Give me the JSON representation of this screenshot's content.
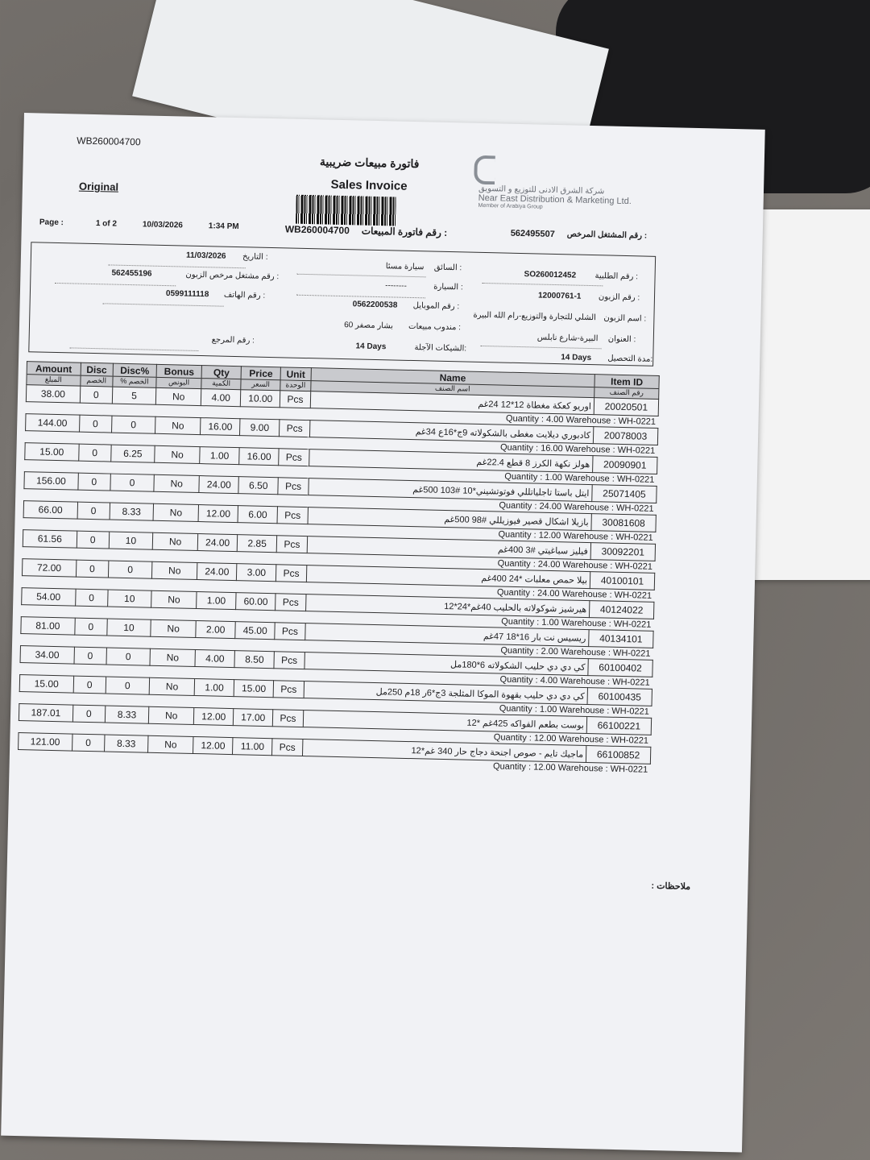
{
  "header": {
    "doc_number": "WB260004700",
    "copy_label": "Original",
    "title_ar": "فاتورة مبيعات ضريبية",
    "title_en": "Sales Invoice",
    "company_ar": "شركة الشرق الادنى للتوزيع و التسويق",
    "company_en": "Near East Distribution & Marketing Ltd.",
    "company_sub": "Member of Arabiya Group",
    "page_label": "Page :",
    "page_value": "1 of 2",
    "print_date": "10/03/2026",
    "print_time": "1:34 PM",
    "invoice_no": "WB260004700",
    "invoice_no_label": "رقم فاتورة المبيعات :",
    "licensed_no_label": "رقم المشتغل المرخص :",
    "licensed_no": "562495507"
  },
  "info": {
    "order_no_label": "رقم الطلبية :",
    "order_no": "SO260012452",
    "customer_no_label": "رقم الزبون :",
    "customer_no": "12000761-1",
    "customer_name_label": "اسم الزبون :",
    "customer_name": "الشلي للتجارة والتوزيع-رام الله البيرة",
    "address_label": "العنوان :",
    "address": "البيرة-شارع نابلس",
    "collection_label": "مدة التحصيل:",
    "collection": "14 Days",
    "driver_label": "السائق :",
    "driver": "سيارة مسئا",
    "car_label": "السيارة :",
    "car": "--------",
    "mobile_label": "رقم الموبايل :",
    "mobile": "0562200538",
    "rep_label": "مندوب مبيعات :",
    "rep": "بشار مصفر 60",
    "cheques_label": "الشيكات الآجلة:",
    "cheques": "14 Days",
    "date_label": "التاريخ :",
    "date": "11/03/2026",
    "cust_license_label": "رقم مشتغل مرخص الزبون :",
    "cust_license": "562455196",
    "phone_label": "رقم الهاتف :",
    "phone": "0599111118",
    "reference_label": "رقم المرجع :"
  },
  "table": {
    "columns": [
      {
        "en": "Amount",
        "ar": "المبلغ"
      },
      {
        "en": "Disc",
        "ar": "الخصم"
      },
      {
        "en": "Disc%",
        "ar": "% الخصم"
      },
      {
        "en": "Bonus",
        "ar": "البونص"
      },
      {
        "en": "Qty",
        "ar": "الكمية"
      },
      {
        "en": "Price",
        "ar": "السعر"
      },
      {
        "en": "Unit",
        "ar": "الوحدة"
      },
      {
        "en": "Name",
        "ar": "اسم الصنف"
      },
      {
        "en": "Item ID",
        "ar": "رقم الصنف"
      }
    ],
    "rows": [
      {
        "amount": "38.00",
        "disc": "0",
        "disc_pct": "5",
        "bonus": "No",
        "qty": "4.00",
        "price": "10.00",
        "unit": "Pcs",
        "name": "اوريو كعكة مغطاة 12*12 24غم",
        "item_id": "20020501",
        "sub": "Quantity : 4.00  Warehouse : WH-0221"
      },
      {
        "amount": "144.00",
        "disc": "0",
        "disc_pct": "0",
        "bonus": "No",
        "qty": "16.00",
        "price": "9.00",
        "unit": "Pcs",
        "name": "كادبوري ديلايت مغطى بالشكولاته 9ج*16ع 34غم",
        "item_id": "20078003",
        "sub": "Quantity : 16.00  Warehouse : WH-0221"
      },
      {
        "amount": "15.00",
        "disc": "0",
        "disc_pct": "6.25",
        "bonus": "No",
        "qty": "1.00",
        "price": "16.00",
        "unit": "Pcs",
        "name": "هولز نكهة الكرز 8 قطع 22.4غم",
        "item_id": "20090901",
        "sub": "Quantity : 1.00  Warehouse : WH-0221"
      },
      {
        "amount": "156.00",
        "disc": "0",
        "disc_pct": "0",
        "bonus": "No",
        "qty": "24.00",
        "price": "6.50",
        "unit": "Pcs",
        "name": "ايتل باستا تاجلياتللي فوتوتشيني*10 #103 500غم",
        "item_id": "25071405",
        "sub": "Quantity : 24.00  Warehouse : WH-0221"
      },
      {
        "amount": "66.00",
        "disc": "0",
        "disc_pct": "8.33",
        "bonus": "No",
        "qty": "12.00",
        "price": "6.00",
        "unit": "Pcs",
        "name": "بازيلا اشكال قصير فيوزيللي #98 500غم",
        "item_id": "30081608",
        "sub": "Quantity : 12.00  Warehouse : WH-0221"
      },
      {
        "amount": "61.56",
        "disc": "0",
        "disc_pct": "10",
        "bonus": "No",
        "qty": "24.00",
        "price": "2.85",
        "unit": "Pcs",
        "name": "فيليز سباغيتي #3 400غم",
        "item_id": "30092201",
        "sub": "Quantity : 24.00  Warehouse : WH-0221"
      },
      {
        "amount": "72.00",
        "disc": "0",
        "disc_pct": "0",
        "bonus": "No",
        "qty": "24.00",
        "price": "3.00",
        "unit": "Pcs",
        "name": "بيلا حمص معلبات *24 400غم",
        "item_id": "40100101",
        "sub": "Quantity : 24.00  Warehouse : WH-0221"
      },
      {
        "amount": "54.00",
        "disc": "0",
        "disc_pct": "10",
        "bonus": "No",
        "qty": "1.00",
        "price": "60.00",
        "unit": "Pcs",
        "name": "هيرشيز شوكولاته بالحليب 40غم*24*12",
        "item_id": "40124022",
        "sub": "Quantity : 1.00  Warehouse : WH-0221"
      },
      {
        "amount": "81.00",
        "disc": "0",
        "disc_pct": "10",
        "bonus": "No",
        "qty": "2.00",
        "price": "45.00",
        "unit": "Pcs",
        "name": "ريسيس نت بار 16*18 47غم",
        "item_id": "40134101",
        "sub": "Quantity : 2.00  Warehouse : WH-0221"
      },
      {
        "amount": "34.00",
        "disc": "0",
        "disc_pct": "0",
        "bonus": "No",
        "qty": "4.00",
        "price": "8.50",
        "unit": "Pcs",
        "name": "كي دي دي حليب الشكولاته 6*180مل",
        "item_id": "60100402",
        "sub": "Quantity : 4.00  Warehouse : WH-0221"
      },
      {
        "amount": "15.00",
        "disc": "0",
        "disc_pct": "0",
        "bonus": "No",
        "qty": "1.00",
        "price": "15.00",
        "unit": "Pcs",
        "name": "كي دي دي حليب بقهوة الموكا المثلجة 3ج*6ر 18م 250مل",
        "item_id": "60100435",
        "sub": "Quantity : 1.00  Warehouse : WH-0221"
      },
      {
        "amount": "187.01",
        "disc": "0",
        "disc_pct": "8.33",
        "bonus": "No",
        "qty": "12.00",
        "price": "17.00",
        "unit": "Pcs",
        "name": "بوست بطعم الفواكه 425غم *12",
        "item_id": "66100221",
        "sub": "Quantity : 12.00  Warehouse : WH-0221"
      },
      {
        "amount": "121.00",
        "disc": "0",
        "disc_pct": "8.33",
        "bonus": "No",
        "qty": "12.00",
        "price": "11.00",
        "unit": "Pcs",
        "name": "ماجيك تايم - صوص اجنحة دجاج حار 340 غم*12",
        "item_id": "66100852",
        "sub": "Quantity : 12.00  Warehouse : WH-0221"
      }
    ]
  },
  "notes_label": "ملاحظات :"
}
